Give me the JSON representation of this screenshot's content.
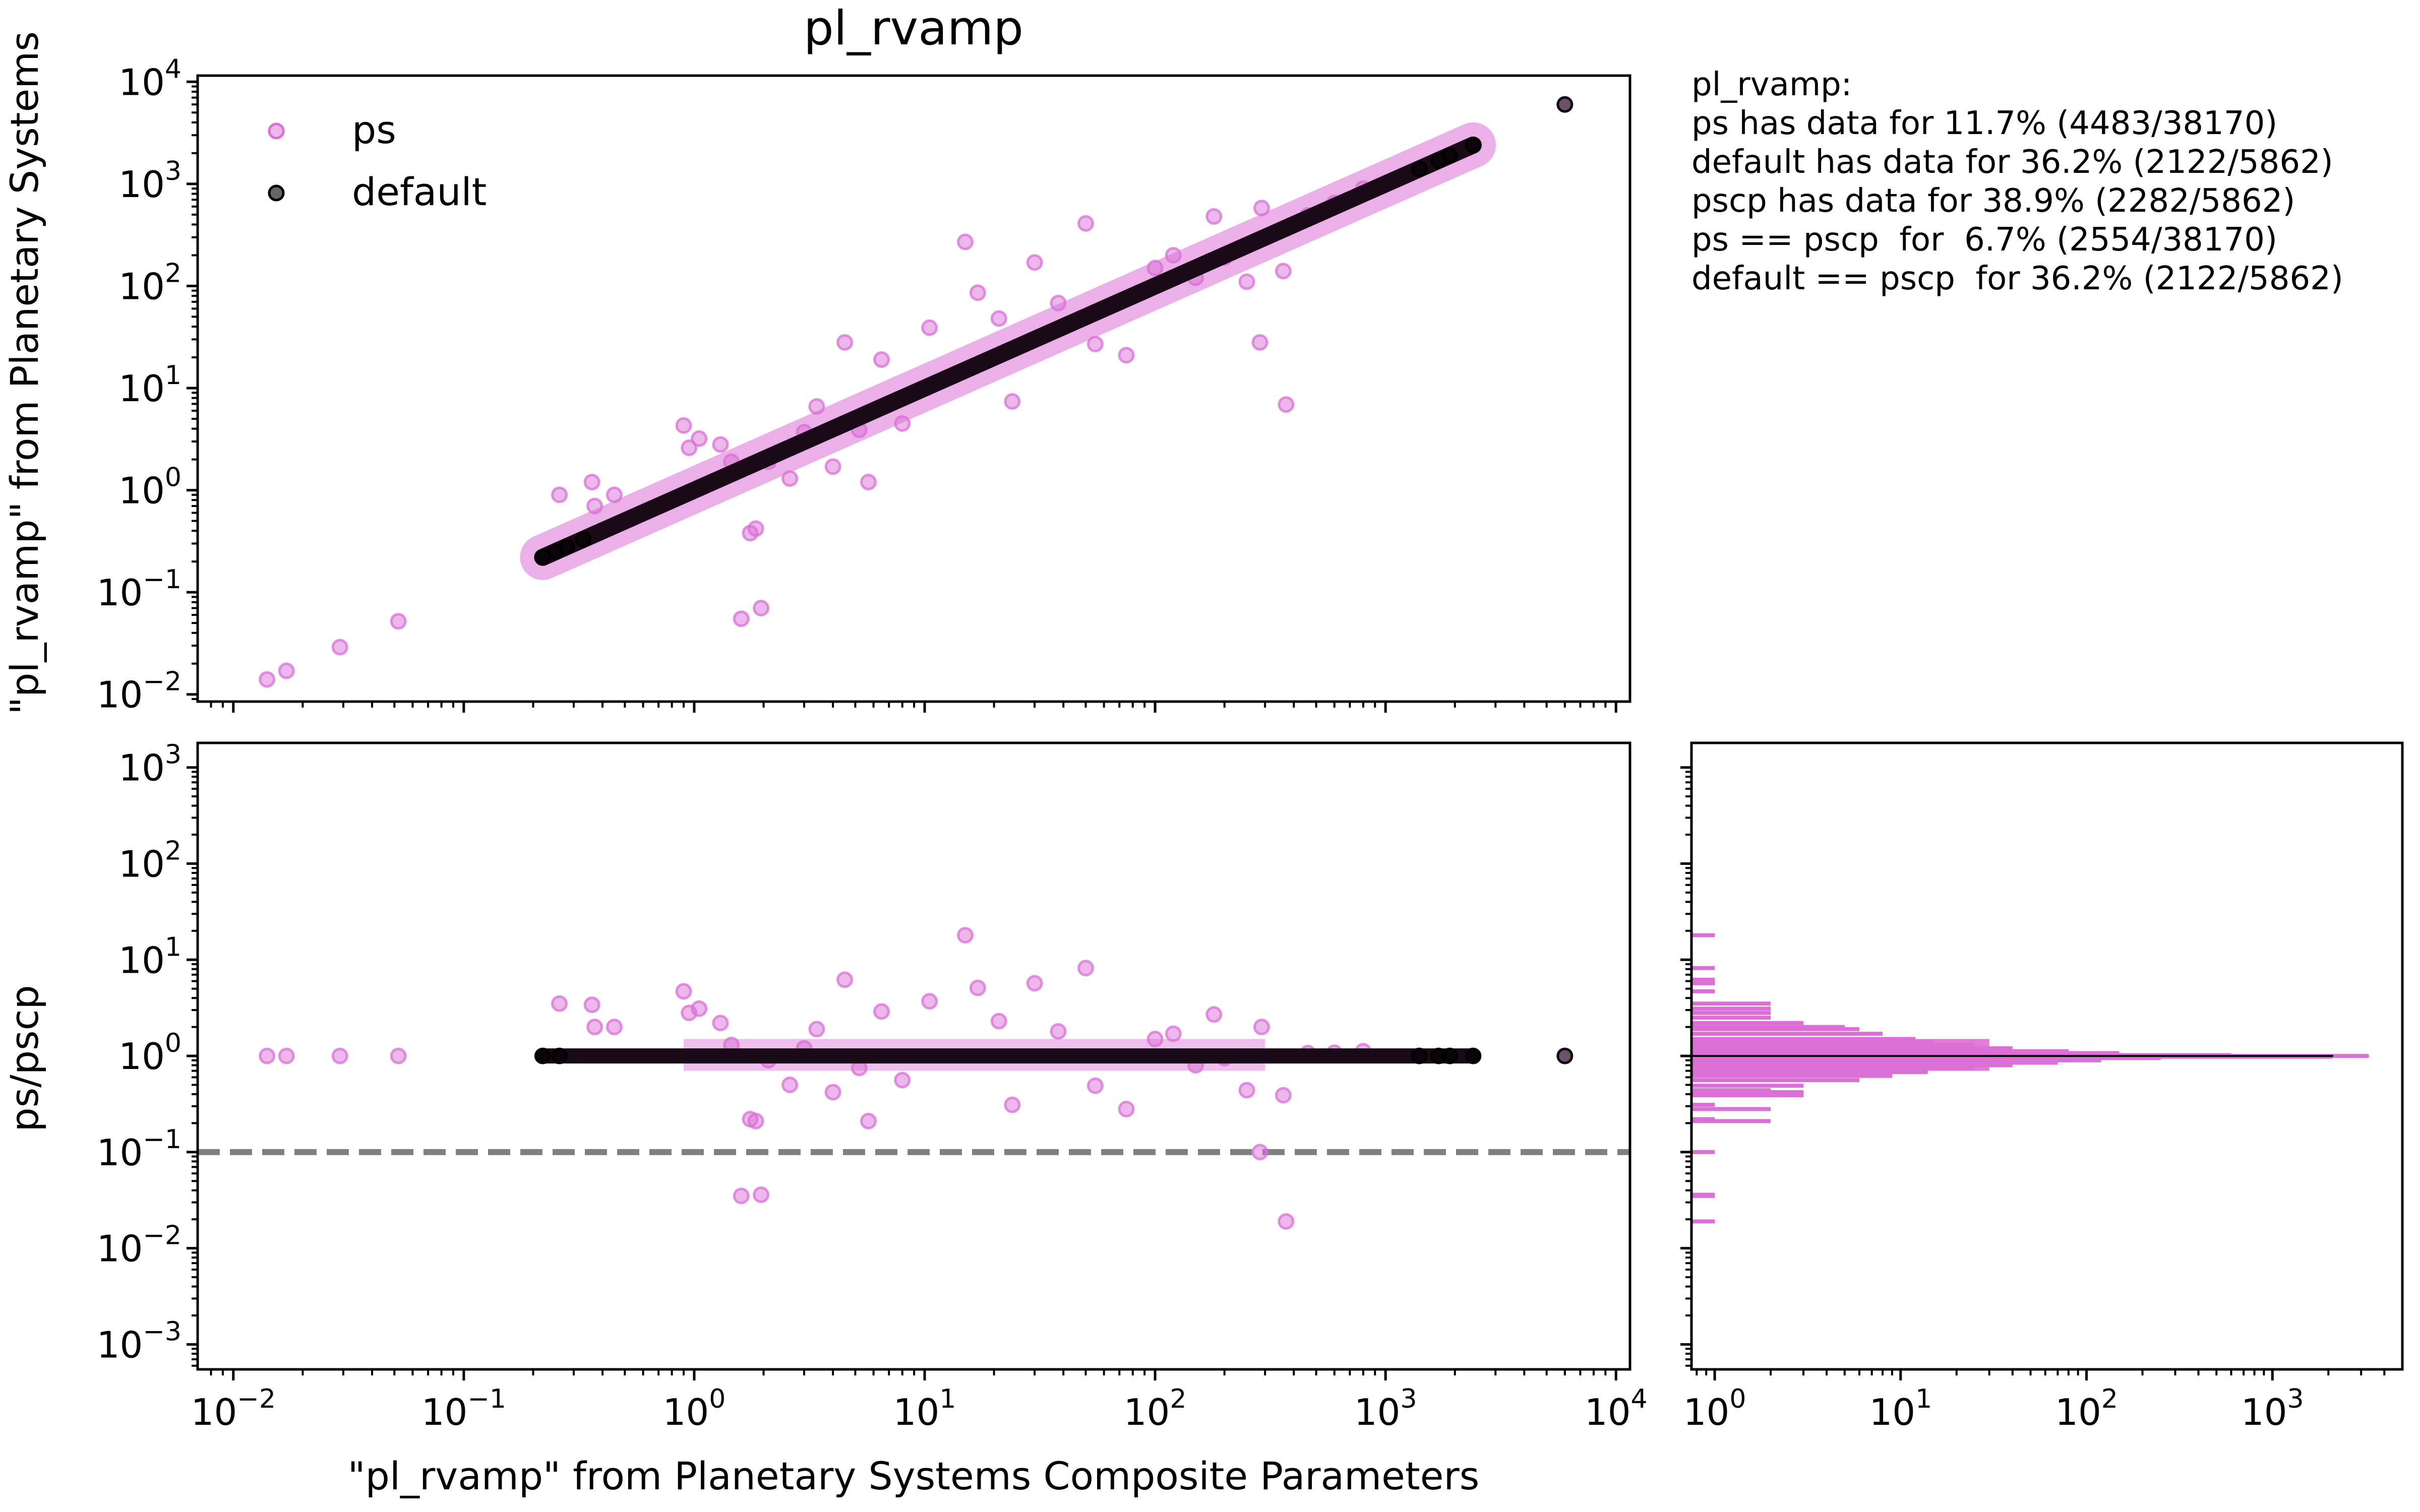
{
  "chart_data": [
    {
      "type": "scatter",
      "panel": "main",
      "title": "pl_rvamp",
      "xlabel": "\"pl_rvamp\" from Planetary Systems Composite Parameters",
      "ylabel": "\"pl_rvamp\" from Planetary Systems",
      "xscale": "log",
      "yscale": "log",
      "xlim": [
        0.007,
        11500
      ],
      "ylim": [
        0.0085,
        11500
      ],
      "yticks": [
        0.01,
        0.1,
        1,
        10,
        100,
        1000,
        10000
      ],
      "ytick_labels": [
        [
          "10",
          "−2"
        ],
        [
          "10",
          "−1"
        ],
        [
          "10",
          "0"
        ],
        [
          "10",
          "1"
        ],
        [
          "10",
          "2"
        ],
        [
          "10",
          "3"
        ],
        [
          "10",
          "4"
        ]
      ],
      "legend": {
        "position": "upper-left",
        "entries": [
          "ps",
          "default"
        ]
      },
      "series": [
        {
          "name": "ps",
          "color": "#da70d6",
          "trend_range": [
            0.22,
            2400
          ],
          "points": [
            [
              0.014,
              0.014
            ],
            [
              0.017,
              0.017
            ],
            [
              0.029,
              0.029
            ],
            [
              0.052,
              0.052
            ],
            [
              0.26,
              0.9
            ],
            [
              0.36,
              1.2
            ],
            [
              0.37,
              0.7
            ],
            [
              0.45,
              0.9
            ],
            [
              0.9,
              4.3
            ],
            [
              0.95,
              2.6
            ],
            [
              1.05,
              3.2
            ],
            [
              1.3,
              2.8
            ],
            [
              1.45,
              1.9
            ],
            [
              1.6,
              0.055
            ],
            [
              1.75,
              0.38
            ],
            [
              1.85,
              0.42
            ],
            [
              1.95,
              0.07
            ],
            [
              2.1,
              1.9
            ],
            [
              2.6,
              1.3
            ],
            [
              3.0,
              3.7
            ],
            [
              3.4,
              6.6
            ],
            [
              4.0,
              1.7
            ],
            [
              4.5,
              28
            ],
            [
              5.2,
              3.9
            ],
            [
              5.7,
              1.2
            ],
            [
              6.5,
              19
            ],
            [
              8.0,
              4.5
            ],
            [
              10.5,
              39
            ],
            [
              15,
              270
            ],
            [
              17,
              86
            ],
            [
              21,
              48
            ],
            [
              24,
              7.4
            ],
            [
              30,
              170
            ],
            [
              38,
              68
            ],
            [
              50,
              410
            ],
            [
              55,
              27
            ],
            [
              75,
              21
            ],
            [
              100,
              150
            ],
            [
              120,
              200
            ],
            [
              150,
              120
            ],
            [
              180,
              480
            ],
            [
              200,
              190
            ],
            [
              250,
              110
            ],
            [
              285,
              28
            ],
            [
              290,
              580
            ],
            [
              360,
              140
            ],
            [
              370,
              6.9
            ],
            [
              460,
              490
            ],
            [
              600,
              650
            ],
            [
              800,
              900
            ],
            [
              6000,
              6000
            ]
          ]
        },
        {
          "name": "default",
          "color": "#000000",
          "trend_range": [
            0.22,
            2400
          ],
          "points": [
            [
              0.22,
              0.22
            ],
            [
              0.25,
              0.25
            ],
            [
              0.28,
              0.28
            ],
            [
              0.33,
              0.33
            ],
            [
              1400,
              1400
            ],
            [
              1700,
              1700
            ],
            [
              1900,
              1900
            ],
            [
              2400,
              2400
            ],
            [
              6000,
              6000
            ]
          ]
        }
      ]
    },
    {
      "type": "scatter",
      "panel": "ratio",
      "xlabel": "\"pl_rvamp\" from Planetary Systems Composite Parameters",
      "ylabel": "ps/pscp",
      "xscale": "log",
      "yscale": "log",
      "xlim": [
        0.007,
        11500
      ],
      "ylim": [
        0.00055,
        1800
      ],
      "xticks": [
        0.01,
        0.1,
        1,
        10,
        100,
        1000,
        10000
      ],
      "xtick_labels": [
        [
          "10",
          "−2"
        ],
        [
          "10",
          "−1"
        ],
        [
          "10",
          "0"
        ],
        [
          "10",
          "1"
        ],
        [
          "10",
          "2"
        ],
        [
          "10",
          "3"
        ],
        [
          "10",
          "4"
        ]
      ],
      "yticks": [
        0.001,
        0.01,
        0.1,
        1,
        10,
        100,
        1000
      ],
      "ytick_labels": [
        [
          "10",
          "−3"
        ],
        [
          "10",
          "−2"
        ],
        [
          "10",
          "−1"
        ],
        [
          "10",
          "0"
        ],
        [
          "10",
          "1"
        ],
        [
          "10",
          "2"
        ],
        [
          "10",
          "3"
        ]
      ],
      "reference_line": {
        "y": 0.1,
        "style": "dashed",
        "color": "#808080"
      },
      "series": [
        {
          "name": "ps",
          "color": "#da70d6",
          "points": [
            [
              0.014,
              1
            ],
            [
              0.017,
              1
            ],
            [
              0.029,
              1
            ],
            [
              0.052,
              1
            ],
            [
              0.26,
              3.5
            ],
            [
              0.36,
              3.4
            ],
            [
              0.37,
              2.0
            ],
            [
              0.45,
              2.0
            ],
            [
              0.9,
              4.7
            ],
            [
              0.95,
              2.8
            ],
            [
              1.05,
              3.1
            ],
            [
              1.3,
              2.2
            ],
            [
              1.45,
              1.3
            ],
            [
              1.6,
              0.035
            ],
            [
              1.75,
              0.22
            ],
            [
              1.85,
              0.21
            ],
            [
              1.95,
              0.036
            ],
            [
              2.1,
              0.9
            ],
            [
              2.6,
              0.5
            ],
            [
              3.0,
              1.2
            ],
            [
              3.4,
              1.9
            ],
            [
              4.0,
              0.42
            ],
            [
              4.5,
              6.2
            ],
            [
              5.2,
              0.75
            ],
            [
              5.7,
              0.21
            ],
            [
              6.5,
              2.9
            ],
            [
              8.0,
              0.56
            ],
            [
              10.5,
              3.7
            ],
            [
              15,
              18
            ],
            [
              17,
              5.1
            ],
            [
              21,
              2.3
            ],
            [
              24,
              0.31
            ],
            [
              30,
              5.7
            ],
            [
              38,
              1.8
            ],
            [
              50,
              8.2
            ],
            [
              55,
              0.49
            ],
            [
              75,
              0.28
            ],
            [
              100,
              1.5
            ],
            [
              120,
              1.7
            ],
            [
              150,
              0.8
            ],
            [
              180,
              2.7
            ],
            [
              200,
              0.95
            ],
            [
              250,
              0.44
            ],
            [
              285,
              0.1
            ],
            [
              290,
              2.0
            ],
            [
              360,
              0.39
            ],
            [
              370,
              0.019
            ],
            [
              460,
              1.07
            ],
            [
              600,
              1.08
            ],
            [
              800,
              1.12
            ],
            [
              6000,
              1
            ]
          ]
        },
        {
          "name": "default",
          "color": "#000000",
          "trend_range": [
            0.22,
            2400
          ],
          "points": [
            [
              0.22,
              1
            ],
            [
              0.26,
              1
            ],
            [
              1400,
              1
            ],
            [
              1700,
              1
            ],
            [
              1900,
              1
            ],
            [
              2400,
              1
            ],
            [
              6000,
              1
            ]
          ]
        }
      ]
    },
    {
      "type": "bar",
      "panel": "histogram",
      "orientation": "horizontal",
      "xscale": "log",
      "yscale": "log",
      "xlim": [
        0.75,
        5000
      ],
      "xticks": [
        1,
        10,
        100,
        1000
      ],
      "xtick_labels": [
        [
          "10",
          "0"
        ],
        [
          "10",
          "1"
        ],
        [
          "10",
          "2"
        ],
        [
          "10",
          "3"
        ]
      ],
      "series": [
        {
          "name": "ps",
          "color": "#da70d6",
          "bins": [
            [
              0.019,
              1
            ],
            [
              0.035,
              1
            ],
            [
              0.036,
              1
            ],
            [
              0.1,
              1
            ],
            [
              0.21,
              2
            ],
            [
              0.22,
              1
            ],
            [
              0.28,
              2
            ],
            [
              0.31,
              1
            ],
            [
              0.39,
              3
            ],
            [
              0.42,
              3
            ],
            [
              0.44,
              2
            ],
            [
              0.49,
              3
            ],
            [
              0.56,
              6
            ],
            [
              0.62,
              9
            ],
            [
              0.68,
              14
            ],
            [
              0.75,
              25
            ],
            [
              0.8,
              40
            ],
            [
              0.85,
              70
            ],
            [
              0.9,
              120
            ],
            [
              0.95,
              250
            ],
            [
              0.98,
              2100
            ],
            [
              1.0,
              3300
            ],
            [
              1.02,
              600
            ],
            [
              1.07,
              150
            ],
            [
              1.12,
              80
            ],
            [
              1.2,
              40
            ],
            [
              1.3,
              25
            ],
            [
              1.4,
              15
            ],
            [
              1.5,
              12
            ],
            [
              1.7,
              8
            ],
            [
              1.9,
              6
            ],
            [
              2.0,
              5
            ],
            [
              2.2,
              3
            ],
            [
              2.5,
              2
            ],
            [
              2.8,
              2
            ],
            [
              3.1,
              2
            ],
            [
              3.5,
              2
            ],
            [
              4.7,
              1
            ],
            [
              5.7,
              1
            ],
            [
              6.2,
              1
            ],
            [
              8.2,
              1
            ],
            [
              18,
              1
            ]
          ]
        },
        {
          "name": "default",
          "color": "#000000",
          "bins": [
            [
              1.0,
              2122
            ]
          ]
        }
      ]
    }
  ],
  "stats": {
    "lines": [
      "pl_rvamp:",
      "",
      "ps has data for 11.7% (4483/38170)",
      "default has data for 36.2% (2122/5862)",
      "pscp has data for 38.9% (2282/5862)",
      "",
      "ps == pscp  for  6.7% (2554/38170)",
      "default == pscp  for 36.2% (2122/5862)"
    ]
  }
}
